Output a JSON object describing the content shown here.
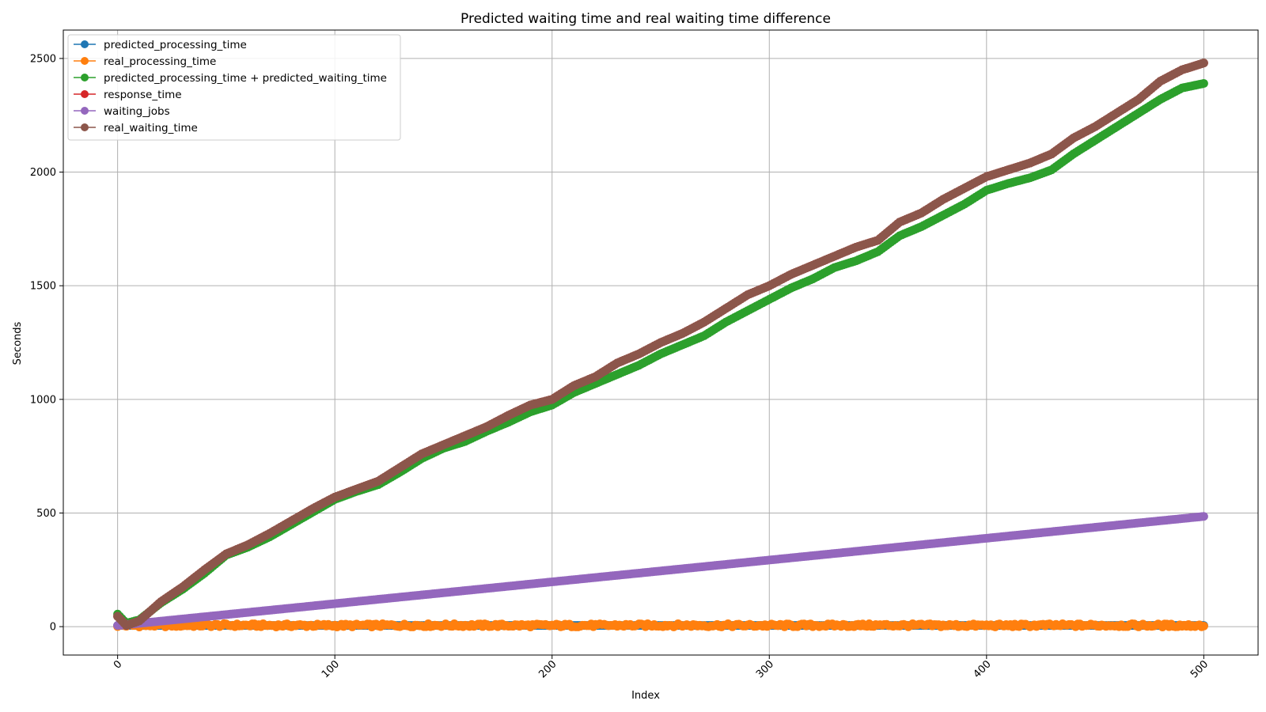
{
  "chart_data": {
    "type": "line",
    "title": "Predicted waiting time and real waiting time difference",
    "xlabel": "Index",
    "ylabel": "Seconds",
    "xlim": [
      -25,
      525
    ],
    "ylim": [
      -125,
      2625
    ],
    "xticks": [
      0,
      100,
      200,
      300,
      400,
      500
    ],
    "yticks": [
      0,
      500,
      1000,
      1500,
      2000,
      2500
    ],
    "grid": true,
    "legend": "top-left",
    "series": [
      {
        "name": "predicted_processing_time",
        "color": "#1f77b4",
        "x": [
          0,
          500
        ],
        "y": [
          5,
          5
        ]
      },
      {
        "name": "real_processing_time",
        "color": "#ff7f0e",
        "x": [
          0,
          50,
          100,
          150,
          200,
          250,
          300,
          350,
          400,
          450,
          500
        ],
        "y": [
          5,
          6,
          5,
          6,
          5,
          6,
          5,
          6,
          5,
          6,
          5
        ]
      },
      {
        "name": "predicted_processing_time + predicted_waiting_time",
        "color": "#2ca02c",
        "x": [
          0,
          4,
          10,
          20,
          30,
          40,
          50,
          60,
          70,
          80,
          90,
          100,
          110,
          120,
          130,
          140,
          150,
          160,
          170,
          180,
          190,
          200,
          210,
          220,
          230,
          240,
          250,
          260,
          270,
          280,
          290,
          300,
          310,
          320,
          330,
          340,
          350,
          360,
          370,
          380,
          390,
          400,
          410,
          420,
          430,
          440,
          450,
          460,
          470,
          480,
          490,
          500
        ],
        "y": [
          55,
          15,
          30,
          105,
          165,
          235,
          315,
          350,
          395,
          450,
          505,
          560,
          595,
          625,
          680,
          740,
          785,
          815,
          860,
          900,
          945,
          975,
          1030,
          1070,
          1110,
          1150,
          1200,
          1240,
          1280,
          1340,
          1390,
          1440,
          1490,
          1530,
          1580,
          1610,
          1650,
          1720,
          1760,
          1810,
          1860,
          1920,
          1950,
          1975,
          2010,
          2080,
          2140,
          2200,
          2260,
          2320,
          2370,
          2390
        ]
      },
      {
        "name": "response_time",
        "color": "#d62728",
        "x": [
          0,
          4,
          10,
          20,
          30,
          40,
          50,
          60,
          70,
          80,
          90,
          100,
          110,
          120,
          130,
          140,
          150,
          160,
          170,
          180,
          190,
          200,
          210,
          220,
          230,
          240,
          250,
          260,
          270,
          280,
          290,
          300,
          310,
          320,
          330,
          340,
          350,
          360,
          370,
          380,
          390,
          400,
          410,
          420,
          430,
          440,
          450,
          460,
          470,
          480,
          490,
          500
        ],
        "y": [
          45,
          5,
          25,
          110,
          175,
          250,
          320,
          360,
          410,
          465,
          520,
          570,
          605,
          640,
          700,
          760,
          800,
          840,
          880,
          930,
          975,
          1000,
          1060,
          1100,
          1160,
          1200,
          1250,
          1290,
          1340,
          1400,
          1460,
          1500,
          1550,
          1590,
          1630,
          1670,
          1700,
          1780,
          1820,
          1880,
          1930,
          1980,
          2010,
          2040,
          2080,
          2150,
          2200,
          2260,
          2320,
          2400,
          2450,
          2480
        ]
      },
      {
        "name": "waiting_jobs",
        "color": "#9467bd",
        "x": [
          0,
          500
        ],
        "y": [
          5,
          485
        ]
      },
      {
        "name": "real_waiting_time",
        "color": "#8c564b",
        "x": [
          0,
          4,
          10,
          20,
          30,
          40,
          50,
          60,
          70,
          80,
          90,
          100,
          110,
          120,
          130,
          140,
          150,
          160,
          170,
          180,
          190,
          200,
          210,
          220,
          230,
          240,
          250,
          260,
          270,
          280,
          290,
          300,
          310,
          320,
          330,
          340,
          350,
          360,
          370,
          380,
          390,
          400,
          410,
          420,
          430,
          440,
          450,
          460,
          470,
          480,
          490,
          500
        ],
        "y": [
          45,
          5,
          25,
          110,
          175,
          250,
          320,
          360,
          410,
          465,
          520,
          570,
          605,
          640,
          700,
          760,
          800,
          840,
          880,
          930,
          975,
          1000,
          1060,
          1100,
          1160,
          1200,
          1250,
          1290,
          1340,
          1400,
          1460,
          1500,
          1550,
          1590,
          1630,
          1670,
          1700,
          1780,
          1820,
          1880,
          1930,
          1980,
          2010,
          2040,
          2080,
          2150,
          2200,
          2260,
          2320,
          2400,
          2450,
          2480
        ]
      }
    ]
  }
}
